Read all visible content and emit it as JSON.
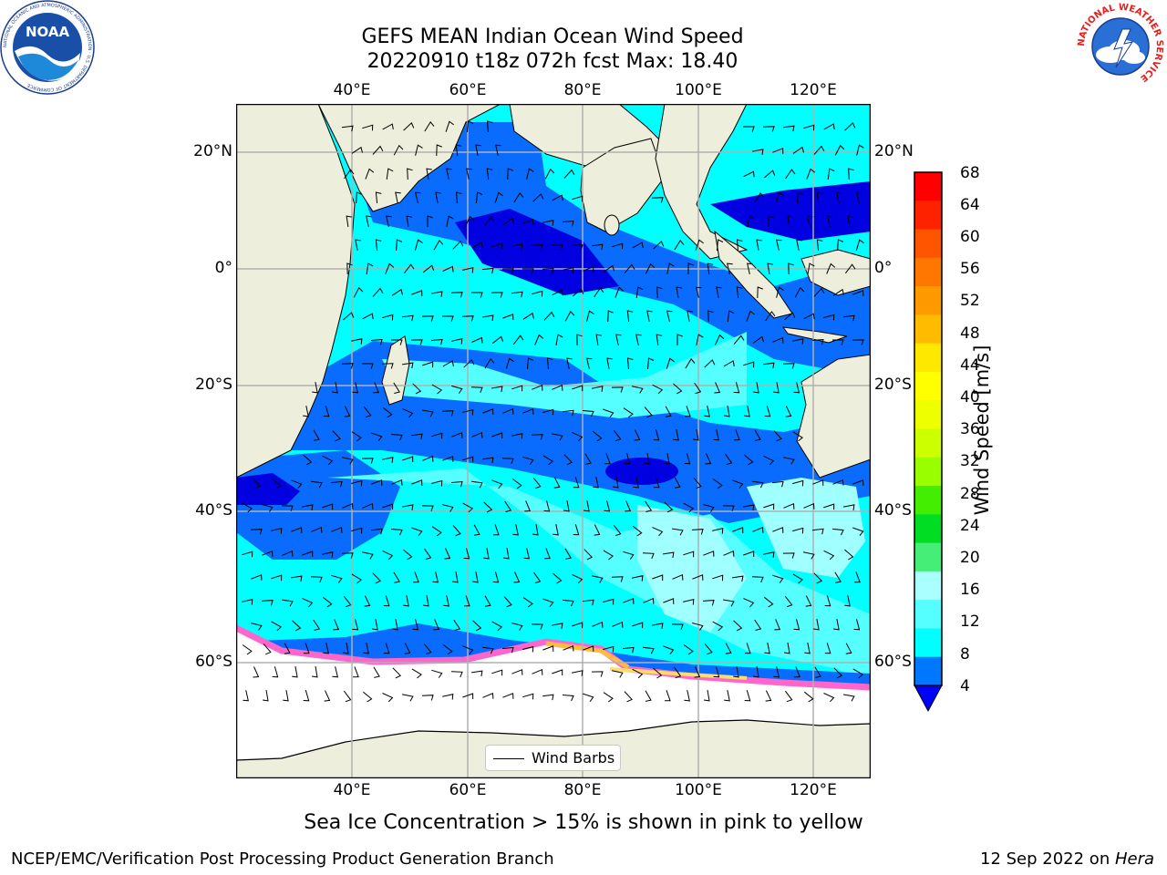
{
  "header": {
    "title_line1": "GEFS MEAN Indian Ocean Wind Speed",
    "title_line2": "20220910 t18z 072h fcst   Max: 18.40"
  },
  "logos": {
    "noaa_text": "NOAA",
    "noaa_ring_text": "NATIONAL OCEANIC AND ATMOSPHERIC ADMINISTRATION · U.S. DEPARTMENT OF COMMERCE",
    "nws_ring_text": "NATIONAL WEATHER SERVICE"
  },
  "map": {
    "lon_ticks": [
      "40°E",
      "60°E",
      "80°E",
      "100°E",
      "120°E"
    ],
    "lat_ticks_left": [
      "20°N",
      "0°",
      "20°S",
      "40°S",
      "60°S"
    ],
    "lat_ticks_right": [
      "20°N",
      "0°",
      "20°S",
      "40°S",
      "60°S"
    ],
    "legend_label": "Wind Barbs",
    "colors": {
      "land": "#eeeedd",
      "ice": "#ffffff",
      "c4_8": "#0a6cff",
      "c0_4": "#0000e0",
      "c8_12": "#00ffff",
      "c12_16": "#55ffff",
      "c16_20": "#a0ffff"
    }
  },
  "colorbar": {
    "label": "Wind Speed [m/s]",
    "ticks": [
      "68",
      "64",
      "60",
      "56",
      "52",
      "48",
      "44",
      "40",
      "36",
      "32",
      "28",
      "24",
      "20",
      "16",
      "12",
      "8",
      "4"
    ],
    "colors": [
      "#ff0000",
      "#ff2200",
      "#ff5500",
      "#ff7700",
      "#ff9900",
      "#ffbb00",
      "#ffe800",
      "#ffff00",
      "#eeff00",
      "#ccff00",
      "#99ff00",
      "#44ee00",
      "#00dd22",
      "#44ee77",
      "#aaffff",
      "#55ffff",
      "#00ffff",
      "#0077ff"
    ],
    "extend_color": "#0000ff"
  },
  "caption": "Sea Ice Concentration > 15% is shown in pink to yellow",
  "footer": {
    "left": "NCEP/EMC/Verification Post Processing Product Generation Branch",
    "right_prefix": "12 Sep 2022 on ",
    "right_host": "Hera"
  }
}
